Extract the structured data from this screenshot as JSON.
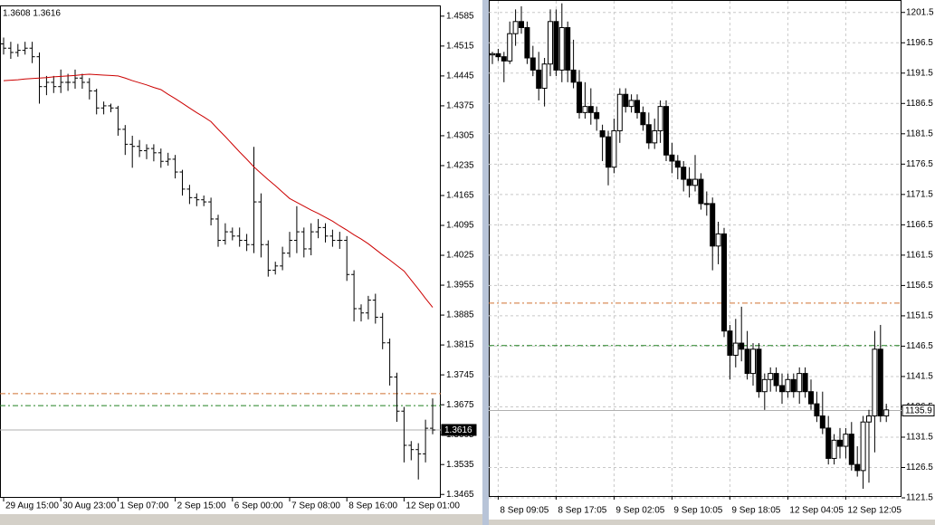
{
  "chart_data": [
    {
      "type": "ohlc",
      "title": "1.3608 1.3616",
      "color": "#000000",
      "categories": [
        "29 Aug 15:00",
        null,
        null,
        null,
        null,
        null,
        null,
        null,
        "30 Aug 23:00",
        null,
        null,
        null,
        null,
        null,
        null,
        null,
        "1 Sep 07:00",
        null,
        null,
        null,
        null,
        null,
        null,
        null,
        "2 Sep 15:00",
        null,
        null,
        null,
        null,
        null,
        null,
        null,
        "6 Sep 00:00",
        null,
        null,
        null,
        null,
        null,
        null,
        null,
        "7 Sep 08:00",
        null,
        null,
        null,
        null,
        null,
        null,
        null,
        "8 Sep 16:00",
        null,
        null,
        null,
        null,
        null,
        null,
        null,
        "12 Sep 01:00",
        null,
        null,
        null,
        null
      ],
      "open": [
        1.452,
        1.451,
        1.45,
        1.4505,
        1.451,
        1.449,
        1.442,
        1.443,
        1.442,
        1.443,
        1.443,
        1.444,
        1.443,
        1.441,
        1.437,
        1.4375,
        1.437,
        1.432,
        1.4285,
        1.428,
        1.427,
        1.4275,
        1.4265,
        1.4245,
        1.425,
        1.422,
        1.418,
        1.416,
        1.4155,
        1.415,
        1.411,
        1.406,
        1.408,
        1.407,
        1.406,
        1.405,
        1.415,
        1.405,
        1.399,
        1.4,
        1.403,
        1.406,
        1.408,
        1.404,
        1.408,
        1.409,
        1.407,
        1.406,
        1.406,
        1.398,
        1.39,
        1.389,
        1.392,
        1.388,
        1.382,
        1.374,
        1.366,
        1.358,
        1.357,
        1.356,
        1.362
      ],
      "high": [
        1.4535,
        1.4525,
        1.452,
        1.4525,
        1.4525,
        1.45,
        1.4445,
        1.4445,
        1.446,
        1.445,
        1.446,
        1.445,
        1.444,
        1.4415,
        1.4385,
        1.438,
        1.4375,
        1.433,
        1.4305,
        1.4295,
        1.4285,
        1.4285,
        1.4275,
        1.4265,
        1.426,
        1.4225,
        1.419,
        1.417,
        1.4165,
        1.416,
        1.412,
        1.41,
        1.409,
        1.409,
        1.4075,
        1.4279,
        1.417,
        1.406,
        1.401,
        1.4045,
        1.408,
        1.414,
        1.409,
        1.41,
        1.411,
        1.41,
        1.4085,
        1.408,
        1.407,
        1.399,
        1.391,
        1.393,
        1.3935,
        1.389,
        1.383,
        1.375,
        1.367,
        1.359,
        1.3585,
        1.364,
        1.369
      ],
      "low": [
        1.4495,
        1.4485,
        1.449,
        1.4495,
        1.4475,
        1.438,
        1.44,
        1.4405,
        1.4405,
        1.441,
        1.4415,
        1.4415,
        1.439,
        1.4355,
        1.4355,
        1.436,
        1.4305,
        1.426,
        1.423,
        1.4255,
        1.425,
        1.4245,
        1.423,
        1.4235,
        1.4205,
        1.4165,
        1.4145,
        1.414,
        1.414,
        1.4095,
        1.4045,
        1.405,
        1.406,
        1.4045,
        1.4035,
        1.403,
        1.402,
        1.3975,
        1.398,
        1.399,
        1.402,
        1.403,
        1.402,
        1.4025,
        1.4065,
        1.4055,
        1.4045,
        1.404,
        1.3965,
        1.387,
        1.387,
        1.3875,
        1.3865,
        1.3805,
        1.372,
        1.3635,
        1.354,
        1.3545,
        1.35,
        1.354,
        1.3606
      ],
      "close": [
        1.451,
        1.45,
        1.4505,
        1.451,
        1.449,
        1.442,
        1.443,
        1.442,
        1.443,
        1.443,
        1.444,
        1.443,
        1.441,
        1.437,
        1.4375,
        1.437,
        1.432,
        1.4285,
        1.428,
        1.427,
        1.4275,
        1.4265,
        1.4245,
        1.425,
        1.422,
        1.418,
        1.416,
        1.4155,
        1.415,
        1.411,
        1.406,
        1.408,
        1.407,
        1.406,
        1.405,
        1.415,
        1.405,
        1.399,
        1.4,
        1.403,
        1.406,
        1.408,
        1.404,
        1.408,
        1.409,
        1.407,
        1.406,
        1.406,
        1.398,
        1.39,
        1.389,
        1.392,
        1.388,
        1.382,
        1.374,
        1.366,
        1.358,
        1.357,
        1.356,
        1.362,
        1.3616
      ],
      "ma": {
        "color": "#cc0000",
        "values": [
          1.4434,
          1.4435,
          1.4436,
          1.4438,
          1.4439,
          1.444,
          1.4441,
          1.4443,
          1.4444,
          1.4445,
          1.4446,
          1.4448,
          1.4449,
          1.4448,
          1.4447,
          1.4446,
          1.4445,
          1.444,
          1.4434,
          1.4429,
          1.4424,
          1.4418,
          1.4413,
          1.4402,
          1.4392,
          1.4381,
          1.437,
          1.4359,
          1.4349,
          1.4338,
          1.432,
          1.4303,
          1.4285,
          1.4267,
          1.425,
          1.4232,
          1.4217,
          1.4202,
          1.4188,
          1.4173,
          1.4158,
          1.4149,
          1.414,
          1.4131,
          1.4123,
          1.4114,
          1.4105,
          1.4094,
          1.4084,
          1.4073,
          1.4063,
          1.4052,
          1.4039,
          1.4026,
          1.4014,
          1.4001,
          1.3988,
          1.3967,
          1.3946,
          1.3924,
          1.3903
        ]
      },
      "levels": [
        {
          "value": 1.3701,
          "color": "#d07030"
        },
        {
          "value": 1.3673,
          "color": "#208020"
        }
      ],
      "last_price": 1.3616,
      "ylim": [
        1.3457,
        1.4608
      ],
      "yticks": [
        1.4585,
        1.4515,
        1.4445,
        1.4375,
        1.4305,
        1.4235,
        1.4165,
        1.4095,
        1.4025,
        1.3955,
        1.3885,
        1.3815,
        1.3745,
        1.3675,
        1.3605,
        1.3535,
        1.3465
      ],
      "grid": false
    },
    {
      "type": "candlestick",
      "color": "#000000",
      "categories": [
        null,
        "8 Sep 09:05",
        null,
        null,
        null,
        null,
        null,
        null,
        null,
        null,
        null,
        "8 Sep 17:05",
        null,
        null,
        null,
        null,
        null,
        null,
        null,
        null,
        null,
        "9 Sep 02:05",
        null,
        null,
        null,
        null,
        null,
        null,
        null,
        null,
        null,
        "9 Sep 10:05",
        null,
        null,
        null,
        null,
        null,
        null,
        null,
        null,
        null,
        "9 Sep 18:05",
        null,
        null,
        null,
        null,
        null,
        null,
        null,
        null,
        null,
        "12 Sep 04:05",
        null,
        null,
        null,
        null,
        null,
        null,
        null,
        null,
        null,
        "12 Sep 12:05",
        null,
        null,
        null,
        null,
        null,
        null,
        null
      ],
      "open": [
        1194.5,
        1194.7,
        1194.2,
        1193.5,
        1198,
        1200,
        1199,
        1194,
        1192,
        1189,
        1193,
        1200,
        1192,
        1199,
        1192,
        1190,
        1185,
        1186,
        1185,
        1182,
        1181,
        1176,
        1182,
        1188,
        1186,
        1187,
        1185,
        1183,
        1180,
        1182,
        1186,
        1178,
        1177,
        1176,
        1174,
        1173,
        1174,
        1170,
        1170,
        1163,
        1165,
        1149,
        1145,
        1147,
        1146,
        1142,
        1146,
        1139,
        1141,
        1142,
        1140,
        1139,
        1141,
        1139,
        1142,
        1139,
        1137,
        1135,
        1133,
        1128,
        1131,
        1130,
        1132,
        1127,
        1126,
        1134,
        1135,
        1146,
        1135
      ],
      "high": [
        1195,
        1195.5,
        1195,
        1200,
        1202,
        1202.5,
        1200,
        1196,
        1195,
        1194,
        1202,
        1202,
        1203,
        1200,
        1197,
        1192,
        1190,
        1189,
        1186,
        1183,
        1182,
        1184,
        1189,
        1189,
        1188,
        1188,
        1186,
        1185,
        1184,
        1187,
        1187,
        1180,
        1178,
        1177,
        1176,
        1178,
        1175,
        1172,
        1171,
        1167,
        1166,
        1150,
        1151,
        1153,
        1149,
        1147,
        1147,
        1142,
        1143,
        1143,
        1142,
        1142,
        1142,
        1143,
        1143,
        1141,
        1139,
        1139,
        1135,
        1132,
        1133,
        1133,
        1134,
        1130,
        1135,
        1136,
        1149,
        1150,
        1137
      ],
      "low": [
        1193,
        1193.5,
        1190,
        1193,
        1196,
        1198,
        1193,
        1191,
        1187,
        1186,
        1191,
        1191,
        1190,
        1190,
        1189,
        1184,
        1184,
        1183,
        1182,
        1177,
        1173,
        1175,
        1180,
        1185,
        1185,
        1184,
        1182,
        1179,
        1179,
        1180,
        1177,
        1175,
        1174,
        1172,
        1171,
        1172,
        1169,
        1168,
        1159,
        1160,
        1148,
        1141,
        1143,
        1144,
        1141,
        1140,
        1138,
        1136,
        1139,
        1139,
        1137,
        1138,
        1138,
        1137,
        1138,
        1136,
        1134,
        1132,
        1127,
        1127,
        1128,
        1128,
        1126,
        1125,
        1123,
        1124,
        1129,
        1134,
        1134
      ],
      "close": [
        1194.7,
        1194.2,
        1193.5,
        1198,
        1200,
        1199,
        1194,
        1192,
        1189,
        1193,
        1200,
        1192,
        1199,
        1192,
        1190,
        1185,
        1186,
        1185,
        1184,
        1181,
        1176,
        1182,
        1188,
        1186,
        1187,
        1185,
        1183,
        1180,
        1182,
        1186,
        1178,
        1177,
        1176,
        1174,
        1173,
        1174,
        1170,
        1170,
        1163,
        1165,
        1149,
        1145,
        1147,
        1146,
        1142,
        1146,
        1139,
        1141,
        1142,
        1140,
        1139,
        1141,
        1139,
        1142,
        1139,
        1137,
        1135,
        1133,
        1128,
        1131,
        1130,
        1132,
        1127,
        1126,
        1134,
        1135,
        1146,
        1135,
        1136
      ],
      "levels": [
        {
          "value": 1153.6,
          "color": "#d07030"
        },
        {
          "value": 1146.6,
          "color": "#208020"
        }
      ],
      "last_price": 1135.9,
      "ylim": [
        1121.8,
        1203.4
      ],
      "yticks": [
        1201.5,
        1196.5,
        1191.5,
        1186.5,
        1181.5,
        1176.5,
        1171.5,
        1166.5,
        1161.5,
        1156.5,
        1151.5,
        1146.5,
        1141.5,
        1136.5,
        1131.5,
        1126.5,
        1121.5
      ],
      "grid": true
    }
  ]
}
